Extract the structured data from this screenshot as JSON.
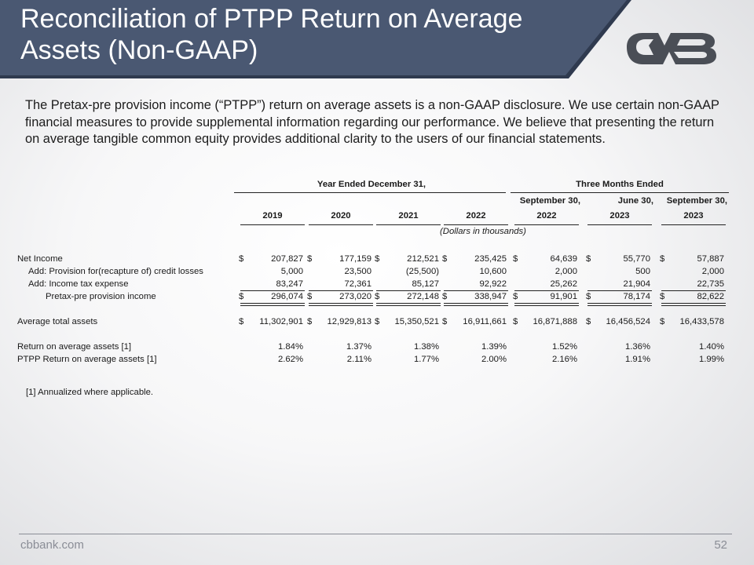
{
  "title": "Reconciliation of PTPP Return on Average Assets (Non-GAAP)",
  "intro": "The Pretax-pre provision income (“PTPP”) return on average assets is a non-GAAP disclosure. We use certain non-GAAP financial measures to provide supplemental information regarding our performance. We believe that presenting the return on average tangible common equity provides additional clarity to the users of our financial statements.",
  "colors": {
    "banner": "#4a5872",
    "banner_shadow": "#2f3a4f",
    "logo": "#4a4e56"
  },
  "table": {
    "group_headers": [
      "Year Ended December 31,",
      "Three Months Ended"
    ],
    "period_lines": [
      "",
      "",
      "",
      "",
      "September 30,",
      "June 30,",
      "September 30,"
    ],
    "year_lines": [
      "2019",
      "2020",
      "2021",
      "2022",
      "2022",
      "2023",
      "2023"
    ],
    "units": "(Dollars in thousands)",
    "rows": [
      {
        "label": "Net Income",
        "values": [
          "207,827",
          "177,159",
          "212,521",
          "235,425",
          "64,639",
          "55,770",
          "57,887"
        ],
        "dollar": "$"
      },
      {
        "label": "Add: Provision for(recapture of) credit losses",
        "values": [
          "5,000",
          "23,500",
          "(25,500)",
          "10,600",
          "2,000",
          "500",
          "2,000"
        ],
        "dollar": ""
      },
      {
        "label": "Add: Income tax expense",
        "values": [
          "83,247",
          "72,361",
          "85,127",
          "92,922",
          "25,262",
          "21,904",
          "22,735"
        ],
        "dollar": ""
      },
      {
        "label": "Pretax-pre provision income",
        "values": [
          "296,074",
          "273,020",
          "272,148",
          "338,947",
          "91,901",
          "78,174",
          "82,622"
        ],
        "dollar": "$"
      },
      {
        "label": "Average total assets",
        "values": [
          "11,302,901",
          "12,929,813",
          "15,350,521",
          "16,911,661",
          "16,871,888",
          "16,456,524",
          "16,433,578"
        ],
        "dollar": "$"
      },
      {
        "label": "Return on average assets [1]",
        "values": [
          "1.84%",
          "1.37%",
          "1.38%",
          "1.39%",
          "1.52%",
          "1.36%",
          "1.40%"
        ],
        "dollar": ""
      },
      {
        "label": "PTPP Return on average assets [1]",
        "values": [
          "2.62%",
          "2.11%",
          "1.77%",
          "2.00%",
          "2.16%",
          "1.91%",
          "1.99%"
        ],
        "dollar": ""
      }
    ]
  },
  "footnote": "[1] Annualized where applicable.",
  "footer": {
    "site": "cbbank.com",
    "page": "52"
  }
}
